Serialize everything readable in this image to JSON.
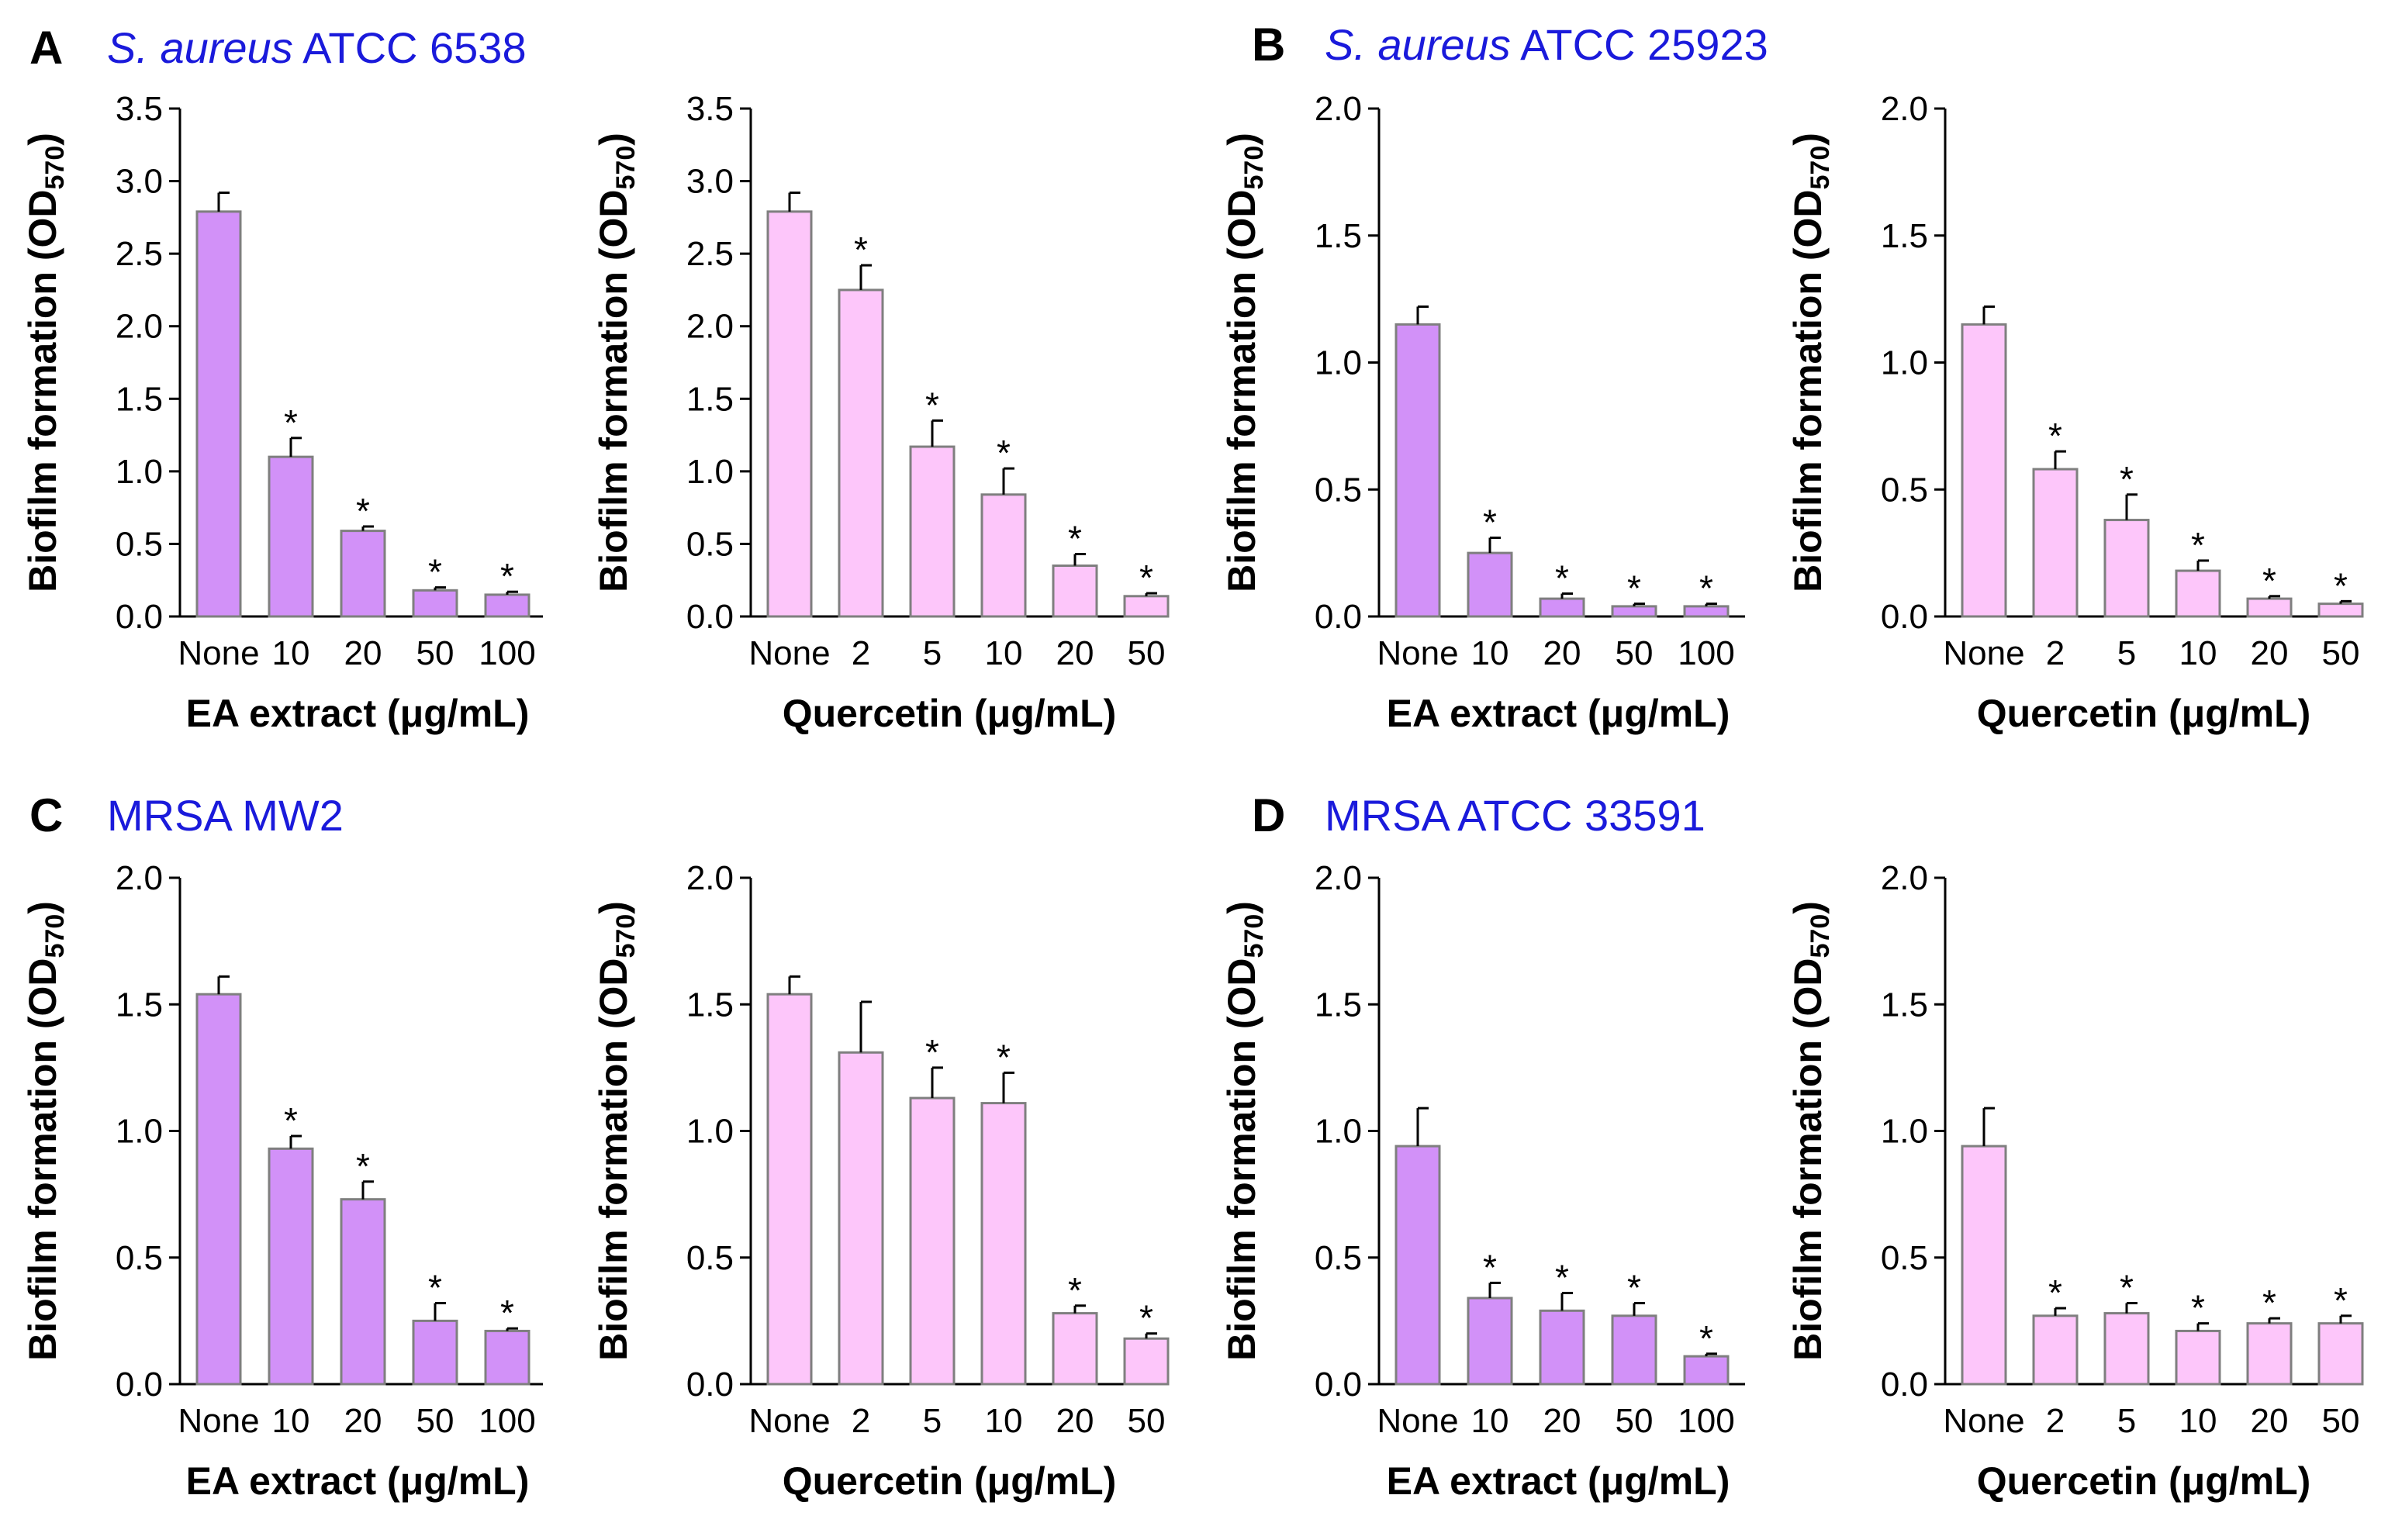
{
  "colors": {
    "ea_bar": "#d291f8",
    "quercetin_bar": "#fdc6fa",
    "bar_stroke": "#7f7f7f",
    "title": "#1a1adb",
    "axis": "#000000"
  },
  "common": {
    "ylabel_main": "Biofilm formation (OD",
    "ylabel_sub": "570",
    "ylabel_close": ")",
    "significance_marker": "*"
  },
  "panels": [
    {
      "letter": "A",
      "title_italic": "S. aureus",
      "title_rest": " ATCC 6538"
    },
    {
      "letter": "B",
      "title_italic": "S. aureus",
      "title_rest": " ATCC 25923"
    },
    {
      "letter": "C",
      "title_italic": "",
      "title_rest": "MRSA MW2"
    },
    {
      "letter": "D",
      "title_italic": "",
      "title_rest": "MRSA ATCC 33591"
    }
  ],
  "chart_data": [
    {
      "type": "bar",
      "panel": "A",
      "xlabel": "EA extract (μg/mL)",
      "ylabel": "Biofilm formation (OD570)",
      "ylim": [
        0,
        3.5
      ],
      "yticks": [
        "0.0",
        "0.5",
        "1.0",
        "1.5",
        "2.0",
        "2.5",
        "3.0",
        "3.5"
      ],
      "ytick_values": [
        0,
        0.5,
        1,
        1.5,
        2,
        2.5,
        3,
        3.5
      ],
      "categories": [
        "None",
        "10",
        "20",
        "50",
        "100"
      ],
      "values": [
        2.79,
        1.1,
        0.59,
        0.18,
        0.15
      ],
      "errors": [
        0.13,
        0.13,
        0.03,
        0.02,
        0.02
      ],
      "significant": [
        false,
        true,
        true,
        true,
        true
      ],
      "color": "ea"
    },
    {
      "type": "bar",
      "panel": "A",
      "xlabel": "Quercetin (μg/mL)",
      "ylabel": "Biofilm formation (OD570)",
      "ylim": [
        0,
        3.5
      ],
      "yticks": [
        "0.0",
        "0.5",
        "1.0",
        "1.5",
        "2.0",
        "2.5",
        "3.0",
        "3.5"
      ],
      "ytick_values": [
        0,
        0.5,
        1,
        1.5,
        2,
        2.5,
        3,
        3.5
      ],
      "categories": [
        "None",
        "2",
        "5",
        "10",
        "20",
        "50"
      ],
      "values": [
        2.79,
        2.25,
        1.17,
        0.84,
        0.35,
        0.14
      ],
      "errors": [
        0.13,
        0.17,
        0.18,
        0.18,
        0.08,
        0.02
      ],
      "significant": [
        false,
        true,
        true,
        true,
        true,
        true
      ],
      "color": "quercetin"
    },
    {
      "type": "bar",
      "panel": "B",
      "xlabel": "EA extract (μg/mL)",
      "ylabel": "Biofilm formation (OD570)",
      "ylim": [
        0,
        2.0
      ],
      "yticks": [
        "0.0",
        "0.5",
        "1.0",
        "1.5",
        "2.0"
      ],
      "ytick_values": [
        0,
        0.5,
        1,
        1.5,
        2
      ],
      "categories": [
        "None",
        "10",
        "20",
        "50",
        "100"
      ],
      "values": [
        1.15,
        0.25,
        0.07,
        0.04,
        0.04
      ],
      "errors": [
        0.07,
        0.06,
        0.02,
        0.01,
        0.01
      ],
      "significant": [
        false,
        true,
        true,
        true,
        true
      ],
      "color": "ea"
    },
    {
      "type": "bar",
      "panel": "B",
      "xlabel": "Quercetin (μg/mL)",
      "ylabel": "Biofilm formation (OD570)",
      "ylim": [
        0,
        2.0
      ],
      "yticks": [
        "0.0",
        "0.5",
        "1.0",
        "1.5",
        "2.0"
      ],
      "ytick_values": [
        0,
        0.5,
        1,
        1.5,
        2
      ],
      "categories": [
        "None",
        "2",
        "5",
        "10",
        "20",
        "50"
      ],
      "values": [
        1.15,
        0.58,
        0.38,
        0.18,
        0.07,
        0.05
      ],
      "errors": [
        0.07,
        0.07,
        0.1,
        0.04,
        0.01,
        0.01
      ],
      "significant": [
        false,
        true,
        true,
        true,
        true,
        true
      ],
      "color": "quercetin"
    },
    {
      "type": "bar",
      "panel": "C",
      "xlabel": "EA extract (μg/mL)",
      "ylabel": "Biofilm formation (OD570)",
      "ylim": [
        0,
        2.0
      ],
      "yticks": [
        "0.0",
        "0.5",
        "1.0",
        "1.5",
        "2.0"
      ],
      "ytick_values": [
        0,
        0.5,
        1,
        1.5,
        2
      ],
      "categories": [
        "None",
        "10",
        "20",
        "50",
        "100"
      ],
      "values": [
        1.54,
        0.93,
        0.73,
        0.25,
        0.21
      ],
      "errors": [
        0.07,
        0.05,
        0.07,
        0.07,
        0.01
      ],
      "significant": [
        false,
        true,
        true,
        true,
        true
      ],
      "color": "ea"
    },
    {
      "type": "bar",
      "panel": "C",
      "xlabel": "Quercetin (μg/mL)",
      "ylabel": "Biofilm formation (OD570)",
      "ylim": [
        0,
        2.0
      ],
      "yticks": [
        "0.0",
        "0.5",
        "1.0",
        "1.5",
        "2.0"
      ],
      "ytick_values": [
        0,
        0.5,
        1,
        1.5,
        2
      ],
      "categories": [
        "None",
        "2",
        "5",
        "10",
        "20",
        "50"
      ],
      "values": [
        1.54,
        1.31,
        1.13,
        1.11,
        0.28,
        0.18
      ],
      "errors": [
        0.07,
        0.2,
        0.12,
        0.12,
        0.03,
        0.02
      ],
      "significant": [
        false,
        false,
        true,
        true,
        true,
        true
      ],
      "color": "quercetin"
    },
    {
      "type": "bar",
      "panel": "D",
      "xlabel": "EA extract (μg/mL)",
      "ylabel": "Biofilm formation (OD570)",
      "ylim": [
        0,
        2.0
      ],
      "yticks": [
        "0.0",
        "0.5",
        "1.0",
        "1.5",
        "2.0"
      ],
      "ytick_values": [
        0,
        0.5,
        1,
        1.5,
        2
      ],
      "categories": [
        "None",
        "10",
        "20",
        "50",
        "100"
      ],
      "values": [
        0.94,
        0.34,
        0.29,
        0.27,
        0.11
      ],
      "errors": [
        0.15,
        0.06,
        0.07,
        0.05,
        0.01
      ],
      "significant": [
        false,
        true,
        true,
        true,
        true
      ],
      "color": "ea"
    },
    {
      "type": "bar",
      "panel": "D",
      "xlabel": "Quercetin (μg/mL)",
      "ylabel": "Biofilm formation (OD570)",
      "ylim": [
        0,
        2.0
      ],
      "yticks": [
        "0.0",
        "0.5",
        "1.0",
        "1.5",
        "2.0"
      ],
      "ytick_values": [
        0,
        0.5,
        1,
        1.5,
        2
      ],
      "categories": [
        "None",
        "2",
        "5",
        "10",
        "20",
        "50"
      ],
      "values": [
        0.94,
        0.27,
        0.28,
        0.21,
        0.24,
        0.24
      ],
      "errors": [
        0.15,
        0.03,
        0.04,
        0.03,
        0.02,
        0.03
      ],
      "significant": [
        false,
        true,
        true,
        true,
        true,
        true
      ],
      "color": "quercetin"
    }
  ]
}
